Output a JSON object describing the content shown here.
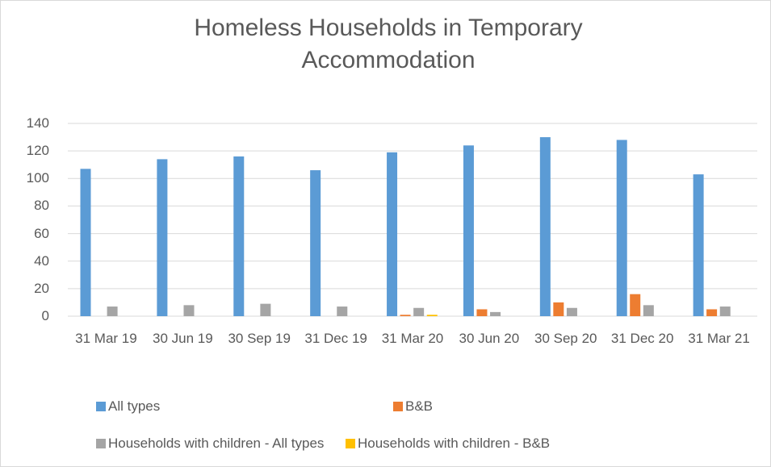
{
  "chart_data": {
    "type": "bar",
    "title": "Homeless Households in Temporary Accommodation",
    "categories": [
      "31 Mar 19",
      "30 Jun 19",
      "30 Sep 19",
      "31 Dec 19",
      "31 Mar 20",
      "30 Jun 20",
      "30 Sep 20",
      "31 Dec 20",
      "31 Mar 21"
    ],
    "series": [
      {
        "name": "All types",
        "color": "#5b9bd5",
        "values": [
          107,
          114,
          116,
          106,
          119,
          124,
          130,
          128,
          103
        ]
      },
      {
        "name": "B&B",
        "color": "#ed7d31",
        "values": [
          0,
          0,
          0,
          0,
          1,
          5,
          10,
          16,
          5
        ]
      },
      {
        "name": "Households with children - All types",
        "color": "#a5a5a5",
        "values": [
          7,
          8,
          9,
          7,
          6,
          3,
          6,
          8,
          7
        ]
      },
      {
        "name": "Households with children - B&B",
        "color": "#ffc000",
        "values": [
          0,
          0,
          0,
          0,
          1,
          0,
          0,
          0,
          0
        ]
      }
    ],
    "ylim": [
      0,
      140
    ],
    "yticks": [
      0,
      20,
      40,
      60,
      80,
      100,
      120,
      140
    ],
    "grid": true,
    "legend": "bottom"
  }
}
